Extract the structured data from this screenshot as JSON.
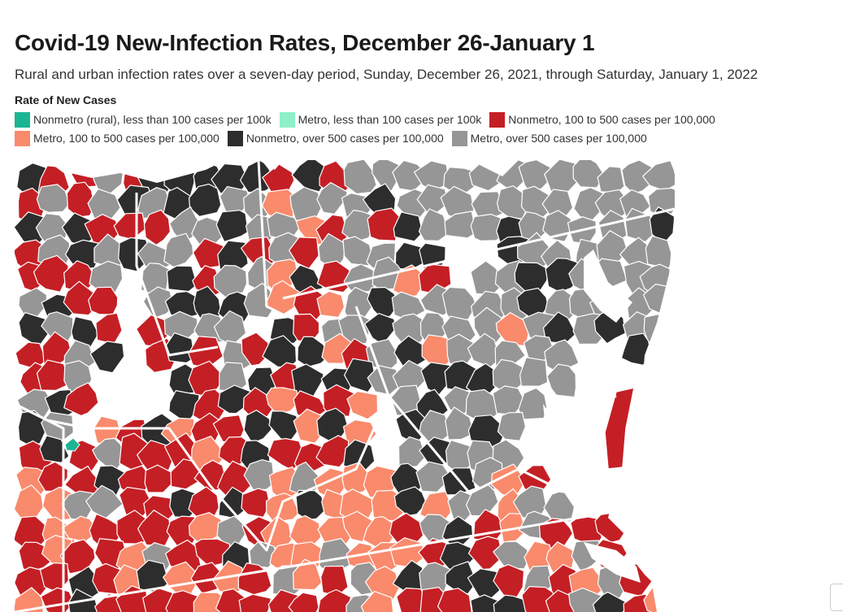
{
  "title": "Covid-19 New-Infection Rates, December 26-January 1",
  "subtitle": "Rural and urban infection rates over a seven-day period, Sunday, December 26, 2021, through Saturday, January 1, 2022",
  "legend": {
    "title": "Rate of New Cases",
    "items": [
      {
        "key": "nonmetro_low",
        "label": "Nonmetro (rural), less than 100 cases per 100k",
        "color": "#1bb594"
      },
      {
        "key": "metro_low",
        "label": "Metro, less than 100 cases per 100k",
        "color": "#8ff0c8"
      },
      {
        "key": "nonmetro_mid",
        "label": "Nonmetro, 100 to 500 cases per 100,000",
        "color": "#c41f25"
      },
      {
        "key": "metro_mid",
        "label": "Metro, 100 to 500 cases per 100,000",
        "color": "#f98a6c"
      },
      {
        "key": "nonmetro_high",
        "label": "Nonmetro, over 500 cases per 100,000",
        "color": "#2d2d2d"
      },
      {
        "key": "metro_high",
        "label": "Metro, over 500 cases per 100,000",
        "color": "#969696"
      }
    ]
  },
  "map": {
    "water_color": "#ffffff",
    "county_border_color": "#ffffff",
    "menu_button": "⋮"
  }
}
